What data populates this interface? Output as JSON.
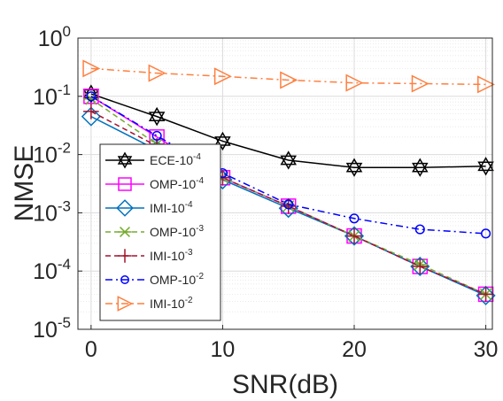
{
  "chart_data": {
    "type": "line",
    "xlabel": "SNR(dB)",
    "ylabel": "NMSE",
    "x_range": [
      -1,
      30.5
    ],
    "y_range": [
      1e-05,
      1
    ],
    "y_scale": "log",
    "grid": true,
    "minor_grid": true,
    "legend_position": "left",
    "x_ticks": [
      0,
      10,
      20,
      30
    ],
    "x_tick_labels": [
      "0",
      "10",
      "20",
      "30"
    ],
    "y_ticks": [
      1e-05,
      0.0001,
      0.001,
      0.01,
      0.1,
      1
    ],
    "y_tick_labels": [
      {
        "base": "10",
        "exp": "-5"
      },
      {
        "base": "10",
        "exp": "-4"
      },
      {
        "base": "10",
        "exp": "-3"
      },
      {
        "base": "10",
        "exp": "-2"
      },
      {
        "base": "10",
        "exp": "-1"
      },
      {
        "base": "10",
        "exp": "0"
      }
    ],
    "series": [
      {
        "name_base": "ECE-10",
        "name_exp": "-4",
        "color": "#000000",
        "marker": "hexagram",
        "dash": "solid",
        "x": [
          0,
          5,
          10,
          15,
          20,
          25,
          30
        ],
        "y": [
          0.11,
          0.045,
          0.017,
          0.008,
          0.006,
          0.006,
          0.0063
        ]
      },
      {
        "name_base": "OMP-10",
        "name_exp": "-4",
        "color": "#ff00ff",
        "marker": "square",
        "dash": "solid",
        "x": [
          0,
          5,
          10,
          15,
          20,
          25,
          30
        ],
        "y": [
          0.1,
          0.02,
          0.004,
          0.0013,
          0.0004,
          0.00012,
          4e-05
        ]
      },
      {
        "name_base": "IMI-10",
        "name_exp": "-4",
        "color": "#0072bd",
        "marker": "diamond",
        "dash": "solid",
        "x": [
          0,
          5,
          10,
          15,
          20,
          25,
          30
        ],
        "y": [
          0.045,
          0.012,
          0.0037,
          0.0012,
          0.0004,
          0.00012,
          3.8e-05
        ]
      },
      {
        "name_base": "OMP-10",
        "name_exp": "-3",
        "color": "#77ac30",
        "marker": "asterisk",
        "dash": "dash",
        "x": [
          0,
          5,
          10,
          15,
          20,
          25,
          30
        ],
        "y": [
          0.09,
          0.015,
          0.004,
          0.0013,
          0.0004,
          0.00013,
          4e-05
        ]
      },
      {
        "name_base": "IMI-10",
        "name_exp": "-3",
        "color": "#a2142f",
        "marker": "plus",
        "dash": "dash",
        "x": [
          0,
          5,
          10,
          15,
          20,
          25,
          30
        ],
        "y": [
          0.055,
          0.014,
          0.004,
          0.0013,
          0.0004,
          0.00012,
          4e-05
        ]
      },
      {
        "name_base": "OMP-10",
        "name_exp": "-2",
        "color": "#0000ff",
        "marker": "circle",
        "dash": "dashdot",
        "x": [
          0,
          5,
          10,
          15,
          20,
          25,
          30
        ],
        "y": [
          0.1,
          0.021,
          0.0048,
          0.0014,
          0.0008,
          0.00052,
          0.00044
        ]
      },
      {
        "name_base": "IMI-10",
        "name_exp": "-2",
        "color": "#ff7f3f",
        "marker": "triangle-right",
        "dash": "dashdot",
        "x": [
          0,
          5,
          10,
          15,
          20,
          25,
          30
        ],
        "y": [
          0.3,
          0.25,
          0.22,
          0.19,
          0.17,
          0.165,
          0.16
        ]
      }
    ]
  }
}
